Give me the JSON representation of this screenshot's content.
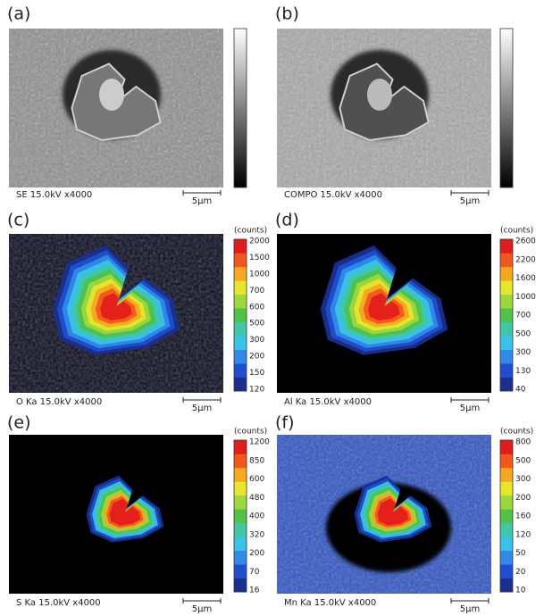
{
  "panels": [
    {
      "label": "(a)",
      "caption": "SE 15.0kV x4000",
      "scale_bar": "5µm"
    },
    {
      "label": "(b)",
      "caption": "COMPO 15.0kV x4000",
      "scale_bar": "5µm"
    },
    {
      "label": "(c)",
      "caption": "O Ka 15.0kV x4000",
      "scale_bar": "5µm",
      "colorbar": {
        "unit": "(counts)",
        "ticks": [
          2000,
          1500,
          1000,
          700,
          600,
          500,
          300,
          200,
          150,
          120
        ]
      }
    },
    {
      "label": "(d)",
      "caption": "Al Ka 15.0kV x4000",
      "scale_bar": "5µm",
      "colorbar": {
        "unit": "(counts)",
        "ticks": [
          2600,
          2200,
          1600,
          1000,
          700,
          500,
          300,
          130,
          40
        ]
      }
    },
    {
      "label": "(e)",
      "caption": "S Ka 15.0kV x4000",
      "scale_bar": "5µm",
      "colorbar": {
        "unit": "(counts)",
        "ticks": [
          1200,
          850,
          600,
          480,
          400,
          320,
          200,
          70,
          16
        ]
      }
    },
    {
      "label": "(f)",
      "caption": "Mn Ka 15.0kV x4000",
      "scale_bar": "5µm",
      "colorbar": {
        "unit": "(counts)",
        "ticks": [
          800,
          500,
          300,
          200,
          160,
          120,
          50,
          20,
          10
        ]
      }
    }
  ]
}
